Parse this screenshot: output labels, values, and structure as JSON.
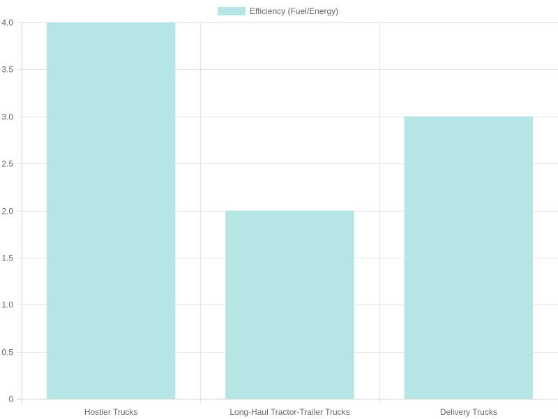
{
  "chart_data": {
    "type": "bar",
    "categories": [
      "Hostler Trucks",
      "Long-Haul Tractor-Trailer Trucks",
      "Delivery Trucks"
    ],
    "series": [
      {
        "name": "Efficiency (Fuel/Energy)",
        "values": [
          4.0,
          2.0,
          3.0
        ]
      }
    ],
    "ylim": [
      0,
      4
    ],
    "yticks": [
      "0",
      "0.5",
      "1.0",
      "1.5",
      "2.0",
      "2.5",
      "3.0",
      "3.5",
      "4.0"
    ],
    "grid": true,
    "legend_position": "top",
    "colors": {
      "bar_fill": "#b6e5e5",
      "grid": "#e5e5e5",
      "axis": "#cccccc",
      "text": "#666666"
    }
  }
}
